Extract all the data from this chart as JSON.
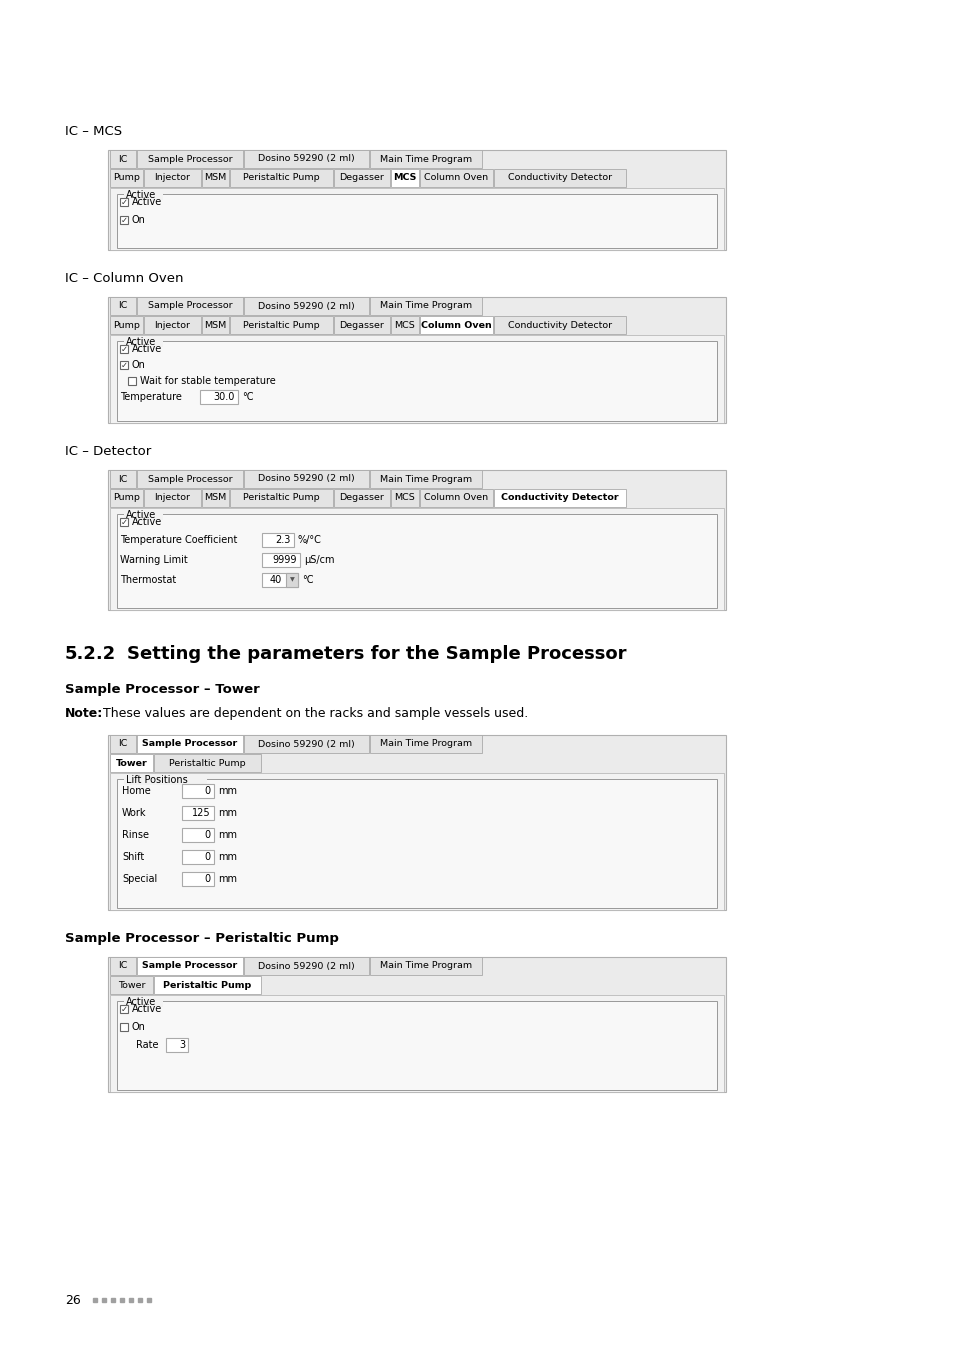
{
  "bg_color": "#ffffff",
  "panel_bg": "#f0f0f0",
  "panel_border": "#aaaaaa",
  "inner_bg": "#f4f4f4",
  "group_bg": "#eeeeee",
  "section_heading_mcs": "IC – MCS",
  "section_heading_col": "IC – Column Oven",
  "section_heading_det": "IC – Detector",
  "section_heading_522": "5.2.2",
  "section_heading_522b": "Setting the parameters for the Sample Processor",
  "section_heading_tower": "Sample Processor – Tower",
  "section_heading_pump": "Sample Processor – Peristaltic Pump",
  "note_text": "These values are dependent on the racks and sample vessels used.",
  "tabs_ic": [
    "IC",
    "Sample Processor",
    "Dosino 59290 (2 ml)",
    "Main Time Program"
  ],
  "tabs_sub": [
    "Pump",
    "Injector",
    "MSM",
    "Peristaltic Pump",
    "Degasser",
    "MCS",
    "Column Oven",
    "Conductivity Detector"
  ],
  "tabs_sp2": [
    "Tower",
    "Peristaltic Pump"
  ],
  "active_tab_mcs": 5,
  "active_tab_col": 6,
  "active_tab_det": 7,
  "active_tab_sp": 1,
  "footer_text": "26"
}
